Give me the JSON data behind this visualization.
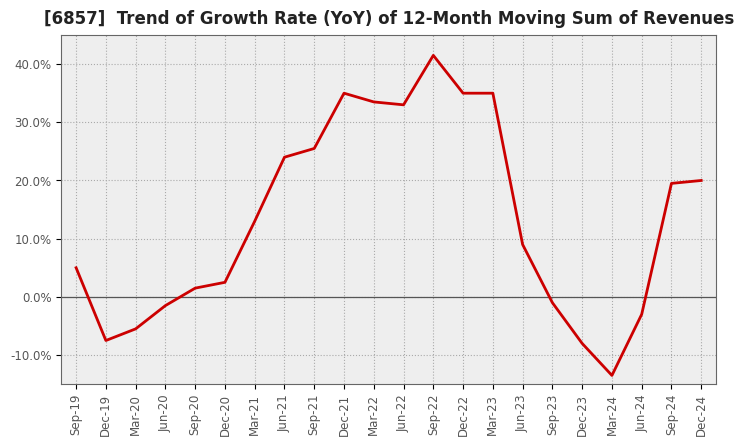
{
  "title": "[6857]  Trend of Growth Rate (YoY) of 12-Month Moving Sum of Revenues",
  "x_labels": [
    "Sep-19",
    "Dec-19",
    "Mar-20",
    "Jun-20",
    "Sep-20",
    "Dec-20",
    "Mar-21",
    "Jun-21",
    "Sep-21",
    "Dec-21",
    "Mar-22",
    "Jun-22",
    "Sep-22",
    "Dec-22",
    "Mar-23",
    "Jun-23",
    "Sep-23",
    "Dec-23",
    "Mar-24",
    "Jun-24",
    "Sep-24",
    "Dec-24"
  ],
  "y_values": [
    5.0,
    -7.5,
    -5.5,
    -1.5,
    1.5,
    2.5,
    13.0,
    24.0,
    25.5,
    35.0,
    33.5,
    33.0,
    41.5,
    35.0,
    35.0,
    9.0,
    -1.0,
    -8.0,
    -13.5,
    -3.0,
    19.5,
    20.0
  ],
  "line_color": "#cc0000",
  "line_width": 2.0,
  "ylim": [
    -15,
    45
  ],
  "yticks": [
    -10,
    0,
    10,
    20,
    30,
    40
  ],
  "ytick_labels": [
    "-10.0%",
    "0.0%",
    "10.0%",
    "20.0%",
    "30.0%",
    "40.0%"
  ],
  "grid_color": "#aaaaaa",
  "grid_style": "dotted",
  "plot_bg_color": "#eeeeee",
  "fig_bg_color": "#ffffff",
  "title_fontsize": 12,
  "tick_fontsize": 8.5,
  "tick_color": "#555555",
  "spine_color": "#666666",
  "zeroline_color": "#555555"
}
